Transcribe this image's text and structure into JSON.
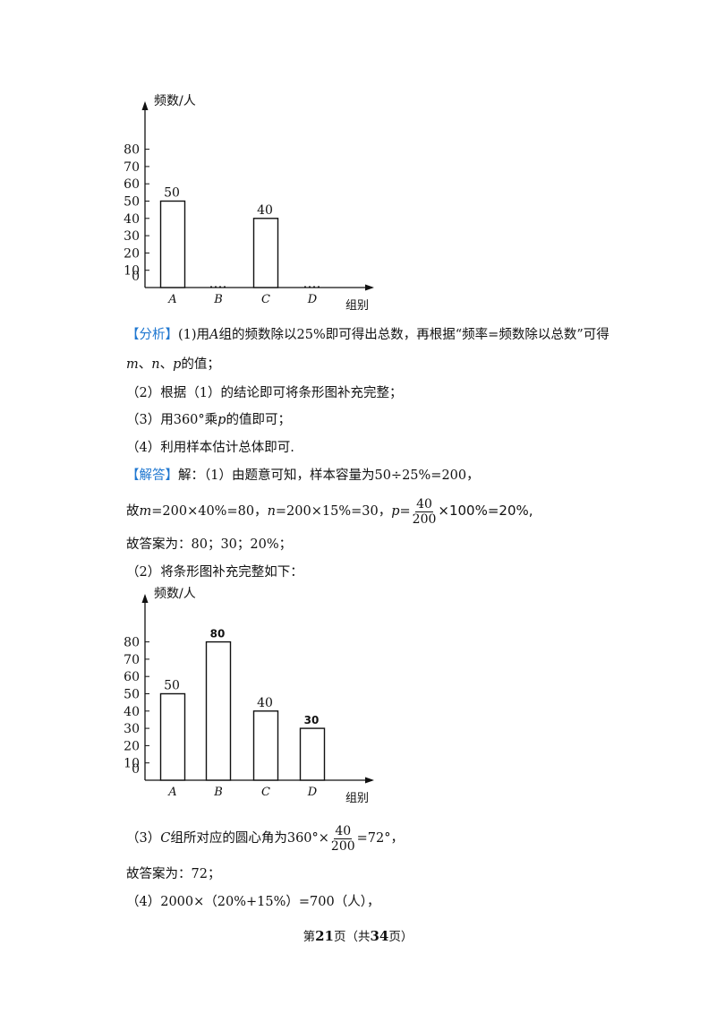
{
  "chart_data": [
    {
      "type": "bar",
      "ylabel": "频数/人",
      "xlabel": "组别",
      "categories": [
        "A",
        "B",
        "C",
        "D"
      ],
      "values": [
        50,
        0,
        40,
        0
      ],
      "data_labels": [
        "50",
        "",
        "40",
        ""
      ],
      "yticks": [
        0,
        10,
        20,
        30,
        40,
        50,
        60,
        70,
        80
      ],
      "ylim": [
        0,
        90
      ],
      "grid": false
    },
    {
      "type": "bar",
      "ylabel": "频数/人",
      "xlabel": "组别",
      "categories": [
        "A",
        "B",
        "C",
        "D"
      ],
      "values": [
        50,
        80,
        40,
        30
      ],
      "data_labels": [
        "50",
        "80",
        "40",
        "30"
      ],
      "yticks": [
        0,
        10,
        20,
        30,
        40,
        50,
        60,
        70,
        80
      ],
      "ylim": [
        0,
        90
      ],
      "grid": false
    }
  ],
  "analysis": {
    "tag": "【分析】",
    "line1": "(1)用",
    "group_a": "A",
    "line1b": "组的频数除以25%即可得出总数，再根据“频率=频数除以总数”可得",
    "m": "m",
    "sep1": "、",
    "n": "n",
    "sep2": "、",
    "p": "p",
    "line2b": "的值；",
    "step2": "（2）根据（1）的结论即可将条形图补充完整；",
    "step3a": "（3）用360°乘",
    "step3b": "的值即可；",
    "step4": "（4）利用样本估计总体即可."
  },
  "answer": {
    "tag": "【解答】",
    "line1": "解：（1）由题意可知，样本容量为50÷25%=200，",
    "line2a": "故",
    "line2b": "=200×40%=80，",
    "line2c": "=200×15%=30，",
    "line2d": "=",
    "frac_num": "40",
    "frac_den": "200",
    "line2e": "×100%=20%,",
    "line3": "故答案为：80；30；20%；",
    "line4": "（2）将条形图补充完整如下：",
    "line5a": "（3）",
    "line5c": "组所对应的圆心角为360°×",
    "line5d": "=72°，",
    "line6": "故答案为：72；",
    "line7": "（4）2000×（20%+15%）=700（人），"
  },
  "footer": {
    "pre": "第",
    "page": "21",
    "mid": "页（共",
    "total": "34",
    "post": "页）"
  }
}
